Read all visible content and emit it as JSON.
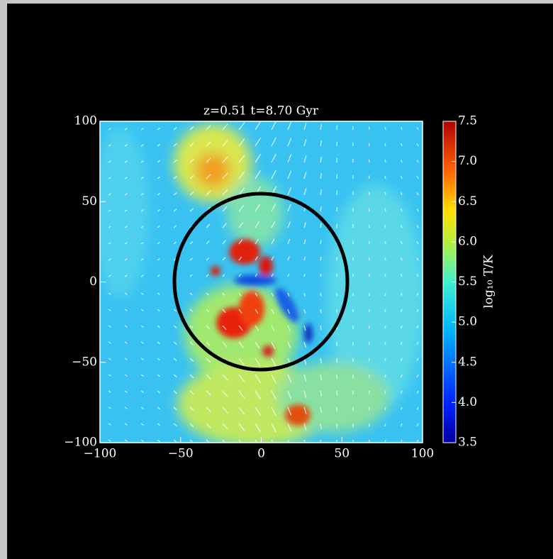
{
  "chart_data": {
    "type": "map",
    "title": "z=0.51 t=8.70 Gyr",
    "xlim": [
      -100,
      100
    ],
    "ylim": [
      -100,
      100
    ],
    "xticks": [
      {
        "value": -100,
        "label": "−100"
      },
      {
        "value": -50,
        "label": "−50"
      },
      0,
      50,
      100
    ],
    "yticks": [
      {
        "value": -100,
        "label": "−100"
      },
      {
        "value": -50,
        "label": "−50"
      },
      0,
      50,
      100
    ],
    "colorbar": {
      "label": "log₁₀ T/K",
      "lim": [
        3.5,
        7.5
      ],
      "ticks": [
        3.5,
        {
          "value": 4,
          "label": "4.0"
        },
        4.5,
        {
          "value": 5,
          "label": "5.0"
        },
        5.5,
        {
          "value": 6,
          "label": "6.0"
        },
        6.5,
        {
          "value": 7,
          "label": "7.0"
        },
        7.5
      ]
    }
  }
}
